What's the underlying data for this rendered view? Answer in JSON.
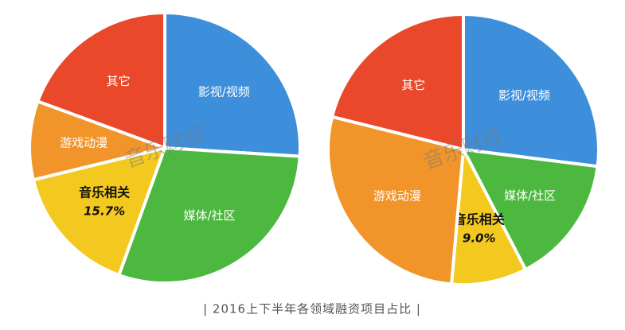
{
  "chart_data": [
    {
      "type": "pie",
      "categories": [
        "影视/视频",
        "媒体/社区",
        "音乐相关",
        "游戏动漫",
        "其它"
      ],
      "values": [
        26,
        29.5,
        15.7,
        9.4,
        19.4
      ],
      "value_labels": [
        null,
        null,
        "15.7%",
        null,
        null
      ],
      "colors": [
        "#3d8fdb",
        "#4cb83f",
        "#f3c91f",
        "#f1952b",
        "#e9492a"
      ],
      "watermark": "音乐财经"
    },
    {
      "type": "pie",
      "categories": [
        "影视/视频",
        "媒体/社区",
        "音乐相关",
        "游戏动漫",
        "其它"
      ],
      "values": [
        27,
        15.4,
        9.0,
        27.5,
        21.1
      ],
      "value_labels": [
        null,
        null,
        "9.0%",
        null,
        null
      ],
      "colors": [
        "#3d8fdb",
        "#4cb83f",
        "#f3c91f",
        "#f1952b",
        "#e9492a"
      ],
      "watermark": "音乐财经"
    }
  ],
  "caption": "| 2016上下半年各领域融资项目占比 |"
}
